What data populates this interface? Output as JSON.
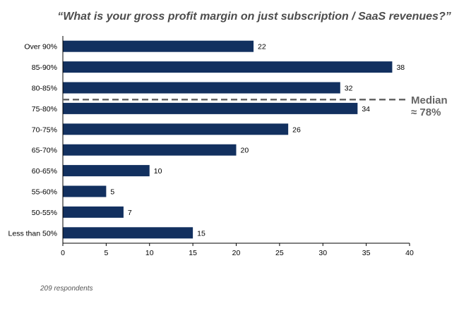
{
  "chart_data": {
    "type": "bar",
    "orientation": "horizontal",
    "title": "“What is your gross profit margin on just subscription / SaaS revenues?”",
    "categories": [
      "Over 90%",
      "85-90%",
      "80-85%",
      "75-80%",
      "70-75%",
      "65-70%",
      "60-65%",
      "55-60%",
      "50-55%",
      "Less than 50%"
    ],
    "values": [
      22,
      38,
      32,
      34,
      26,
      20,
      10,
      5,
      7,
      15
    ],
    "xlim": [
      0,
      40
    ],
    "xticks": [
      "0",
      "5",
      "10",
      "15",
      "20",
      "25",
      "30",
      "35",
      "40"
    ],
    "xlabel": "",
    "ylabel": "",
    "grid": false,
    "bar_color": "#12305f",
    "annotation": {
      "line1": "Median",
      "line2": "≈ 78%",
      "between_categories": [
        "80-85%",
        "75-80%"
      ],
      "line_color": "#666666"
    },
    "footnote": "209 respondents"
  }
}
